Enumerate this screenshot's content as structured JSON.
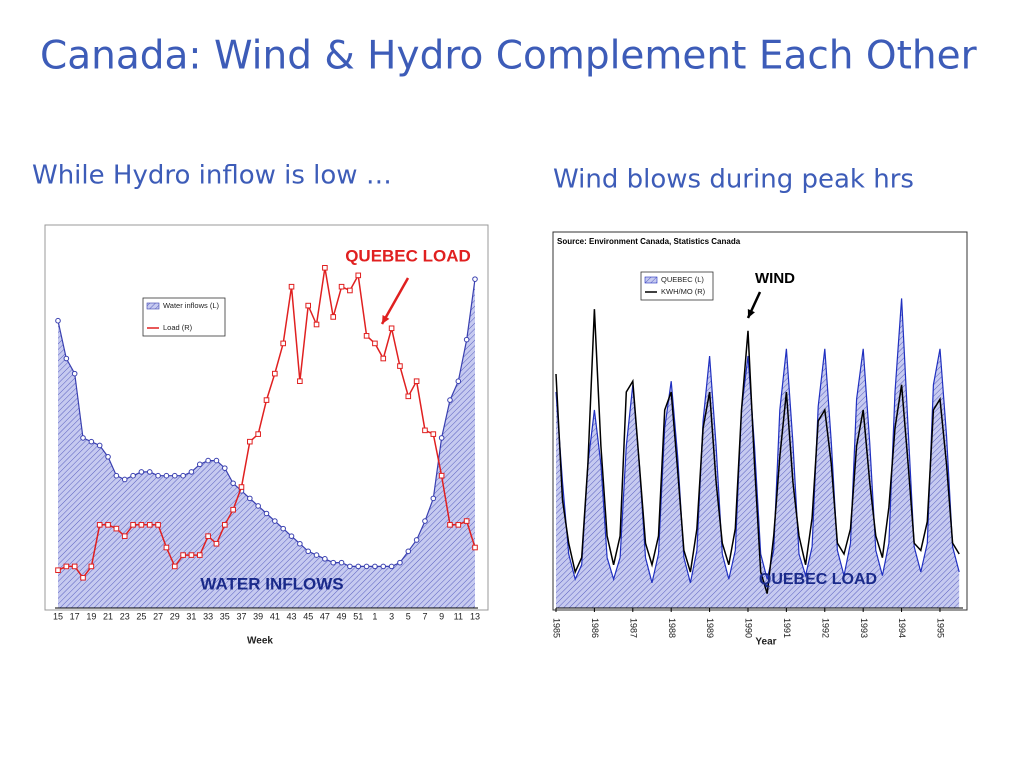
{
  "title": "Canada: Wind & Hydro Complement Each Other",
  "captions": [
    "While Hydro inflow is low …",
    "Wind blows during peak hrs"
  ],
  "chart_data": [
    {
      "type": "line",
      "categories": [
        15,
        null,
        17,
        null,
        19,
        null,
        21,
        null,
        23,
        null,
        25,
        null,
        27,
        null,
        29,
        null,
        31,
        null,
        33,
        null,
        35,
        null,
        37,
        null,
        39,
        null,
        41,
        null,
        43,
        null,
        45,
        null,
        47,
        null,
        49,
        null,
        51,
        null,
        1,
        null,
        3,
        null,
        5,
        null,
        7,
        null,
        9,
        null,
        11,
        null,
        13
      ],
      "series": [
        {
          "name": "Water inflows (L)",
          "color": "#3a40b0",
          "fill": "#c6caf0",
          "style": "area",
          "marker": "circle",
          "values": [
            76,
            66,
            62,
            45,
            44,
            43,
            40,
            35,
            34,
            35,
            36,
            36,
            35,
            35,
            35,
            35,
            36,
            38,
            39,
            39,
            37,
            33,
            31,
            29,
            27,
            25,
            23,
            21,
            19,
            17,
            15,
            14,
            13,
            12,
            12,
            11,
            11,
            11,
            11,
            11,
            11,
            12,
            15,
            18,
            23,
            29,
            45,
            55,
            60,
            71,
            87
          ]
        },
        {
          "name": "Load (R)",
          "color": "#e02020",
          "axis": "y2",
          "marker": "square",
          "values": [
            10,
            11,
            11,
            8,
            11,
            22,
            22,
            21,
            19,
            22,
            22,
            22,
            22,
            16,
            11,
            14,
            14,
            14,
            19,
            17,
            22,
            26,
            32,
            44,
            46,
            55,
            62,
            70,
            85,
            60,
            80,
            75,
            90,
            77,
            85,
            84,
            88,
            72,
            70,
            66,
            74,
            64,
            56,
            60,
            47,
            46,
            35,
            22,
            22,
            23,
            16
          ]
        }
      ],
      "ylim": [
        0,
        100
      ],
      "y2lim": [
        0,
        100
      ],
      "xlabel": "Week",
      "annotations": [
        "QUEBEC LOAD",
        "WATER INFLOWS"
      ]
    },
    {
      "type": "line",
      "x": [
        1985,
        1985.17,
        1985.33,
        1985.5,
        1985.67,
        1985.83,
        1986,
        1986.17,
        1986.33,
        1986.5,
        1986.67,
        1986.83,
        1987,
        1987.17,
        1987.33,
        1987.5,
        1987.67,
        1987.83,
        1988,
        1988.17,
        1988.33,
        1988.5,
        1988.67,
        1988.83,
        1989,
        1989.17,
        1989.33,
        1989.5,
        1989.67,
        1989.83,
        1990,
        1990.17,
        1990.33,
        1990.5,
        1990.67,
        1990.83,
        1991,
        1991.17,
        1991.33,
        1991.5,
        1991.67,
        1991.83,
        1992,
        1992.17,
        1992.33,
        1992.5,
        1992.67,
        1992.83,
        1993,
        1993.17,
        1993.33,
        1993.5,
        1993.67,
        1993.83,
        1994,
        1994.17,
        1994.33,
        1994.5,
        1994.67,
        1994.83,
        1995,
        1995.17,
        1995.33,
        1995.5
      ],
      "xlim": [
        1985,
        1995.6
      ],
      "xticks": [
        1985,
        1986,
        1987,
        1988,
        1989,
        1990,
        1991,
        1992,
        1993,
        1994,
        1995
      ],
      "series": [
        {
          "name": "QUEBEC (L)",
          "color": "#2030c0",
          "fill": "#c6caf0",
          "style": "area",
          "values": [
            60,
            35,
            15,
            8,
            12,
            40,
            55,
            40,
            14,
            8,
            14,
            45,
            62,
            40,
            14,
            7,
            15,
            50,
            63,
            42,
            14,
            7,
            16,
            52,
            70,
            45,
            15,
            8,
            16,
            55,
            70,
            45,
            15,
            8,
            16,
            55,
            72,
            46,
            15,
            9,
            17,
            56,
            72,
            46,
            16,
            9,
            18,
            58,
            72,
            46,
            16,
            9,
            18,
            60,
            86,
            50,
            17,
            10,
            18,
            62,
            72,
            48,
            17,
            10
          ]
        },
        {
          "name": "KWH/MO (R)",
          "color": "#000000",
          "axis": "y2",
          "values": [
            65,
            30,
            18,
            10,
            14,
            40,
            83,
            45,
            20,
            12,
            20,
            60,
            63,
            40,
            18,
            12,
            20,
            55,
            60,
            38,
            16,
            10,
            22,
            50,
            60,
            35,
            18,
            12,
            22,
            55,
            77,
            40,
            10,
            4,
            20,
            42,
            60,
            35,
            20,
            12,
            25,
            52,
            55,
            40,
            18,
            15,
            22,
            45,
            55,
            35,
            20,
            14,
            28,
            50,
            62,
            40,
            18,
            16,
            24,
            55,
            58,
            40,
            18,
            15
          ]
        }
      ],
      "ylim": [
        0,
        100
      ],
      "y2lim": [
        0,
        100
      ],
      "xlabel": "Year",
      "source": "Source: Environment Canada, Statistics Canada",
      "annotations": [
        "WIND",
        "QUEBEC LOAD"
      ]
    }
  ]
}
